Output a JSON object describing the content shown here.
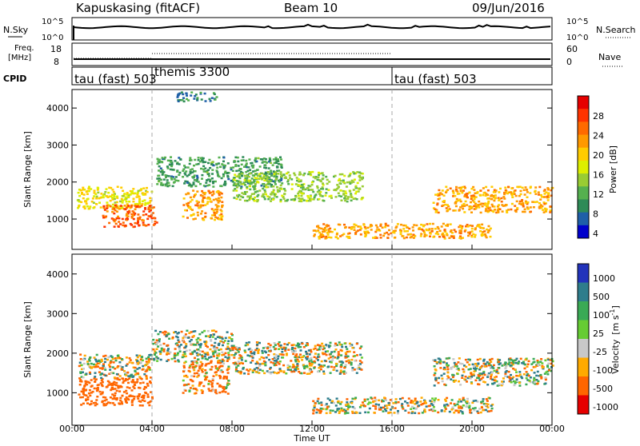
{
  "header": {
    "station": "Kapuskasing (fitACF)",
    "beam": "Beam 10",
    "date": "09/Jun/2016"
  },
  "panels": {
    "noise": {
      "left_label": "N.Sky",
      "right_label": "N.Search",
      "left_ticks": [
        "10^5",
        "10^0"
      ],
      "right_ticks": [
        "10^5",
        "10^0"
      ]
    },
    "freq": {
      "left_label_line1": "Freq.",
      "left_label_line2": "[MHz]",
      "right_label": "Nave",
      "left_ticks": [
        "18",
        "8"
      ],
      "right_ticks": [
        "60",
        "0"
      ]
    },
    "cpid": {
      "label": "CPID",
      "segments": [
        "tau (fast) 503",
        "themis 3300",
        "tau (fast) 503"
      ]
    }
  },
  "axes": {
    "ylabel": "Slant Range [km]",
    "xlabel": "Time UT",
    "y_ticks": [
      "1000",
      "2000",
      "3000",
      "4000"
    ],
    "x_ticks": [
      "00:00",
      "04:00",
      "08:00",
      "12:00",
      "16:00",
      "20:00",
      "00:00"
    ]
  },
  "colorbars": {
    "power": {
      "title": "Power [dB]",
      "labels": [
        "28",
        "24",
        "20",
        "16",
        "12",
        "8",
        "4"
      ],
      "colors": [
        "#e60000",
        "#ff3300",
        "#ff6a00",
        "#ff9900",
        "#ffcc00",
        "#ddee00",
        "#99cc33",
        "#55b04f",
        "#2e8b57",
        "#1f5fa8",
        "#0000cc"
      ]
    },
    "velocity": {
      "title_main": "Velocity",
      "title_units": "[m s",
      "title_exp": "-1",
      "title_close": "]",
      "labels": [
        "1000",
        "500",
        "100",
        "25",
        "-25",
        "-100",
        "-500",
        "-1000"
      ],
      "colors": [
        "#2233bb",
        "#2e7d8c",
        "#3aaa55",
        "#66cc33",
        "#c8c8c8",
        "#ffaa00",
        "#ff6600",
        "#e60000"
      ]
    }
  },
  "chart_data": [
    {
      "type": "heatmap",
      "title": "Power [dB]",
      "xlabel": "Time UT",
      "ylabel": "Slant Range [km]",
      "xlim": [
        "00:00",
        "24:00"
      ],
      "ylim": [
        180,
        4500
      ],
      "zlim": [
        0,
        30
      ],
      "cpid_changes": [
        "04:00",
        "16:00"
      ],
      "regions": [
        {
          "t0": 0.2,
          "t1": 4.0,
          "r0": 1300,
          "r1": 1900,
          "value": 16
        },
        {
          "t0": 1.5,
          "t1": 4.2,
          "r0": 800,
          "r1": 1400,
          "value": 24
        },
        {
          "t0": 4.2,
          "t1": 10.5,
          "r0": 1900,
          "r1": 2700,
          "value": 8
        },
        {
          "t0": 5.5,
          "t1": 7.5,
          "r0": 1000,
          "r1": 1800,
          "value": 20
        },
        {
          "t0": 8.0,
          "t1": 14.5,
          "r0": 1500,
          "r1": 2300,
          "value": 12
        },
        {
          "t0": 12.0,
          "t1": 21.0,
          "r0": 500,
          "r1": 900,
          "value": 20
        },
        {
          "t0": 18.0,
          "t1": 24.0,
          "r0": 1200,
          "r1": 1900,
          "value": 20
        },
        {
          "t0": 5.2,
          "t1": 7.2,
          "r0": 4200,
          "r1": 4450,
          "value": 6
        }
      ]
    },
    {
      "type": "heatmap",
      "title": "Velocity [m s-1]",
      "xlabel": "Time UT",
      "ylabel": "Slant Range [km]",
      "xlim": [
        "00:00",
        "24:00"
      ],
      "ylim": [
        180,
        4500
      ],
      "zlim": [
        -1000,
        1000
      ],
      "regions": [
        {
          "t0": 0.3,
          "t1": 4.0,
          "r0": 700,
          "r1": 1400,
          "value": -300
        },
        {
          "t0": 0.3,
          "t1": 4.0,
          "r0": 1400,
          "r1": 2000,
          "value": 0
        },
        {
          "t0": 4.0,
          "t1": 8.0,
          "r0": 1800,
          "r1": 2600,
          "value": 0
        },
        {
          "t0": 5.5,
          "t1": 7.8,
          "r0": 1000,
          "r1": 1800,
          "value": -150
        },
        {
          "t0": 8.0,
          "t1": 14.5,
          "r0": 1500,
          "r1": 2300,
          "value": 0
        },
        {
          "t0": 12.0,
          "t1": 21.0,
          "r0": 500,
          "r1": 900,
          "value": 0
        },
        {
          "t0": 18.0,
          "t1": 24.0,
          "r0": 1200,
          "r1": 1900,
          "value": 0
        }
      ]
    }
  ]
}
